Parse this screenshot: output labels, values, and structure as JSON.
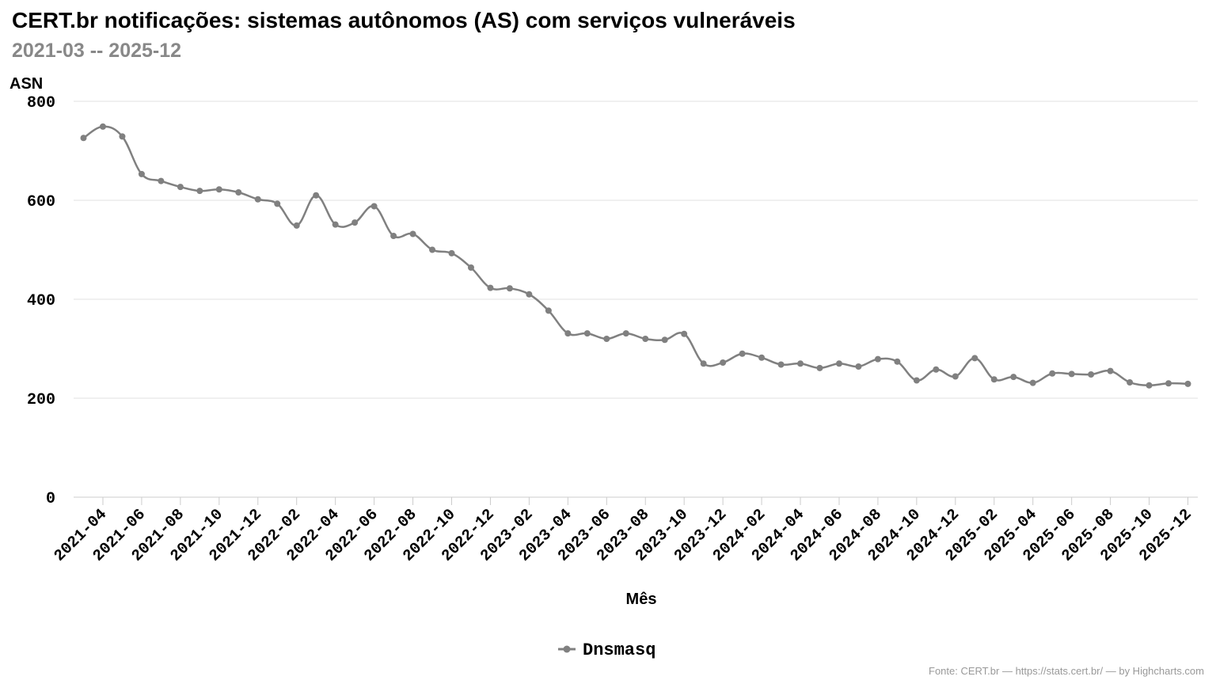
{
  "header": {
    "title": "CERT.br notificações: sistemas autônomos (AS) com serviços vulneráveis",
    "subtitle": "2021-03 -- 2025-12"
  },
  "credits": "Fonte: CERT.br — https://stats.cert.br/ — by Highcharts.com",
  "chart_data": {
    "type": "line",
    "title": "CERT.br notificações: sistemas autônomos (AS) com serviços vulneráveis",
    "subtitle": "2021-03 -- 2025-12",
    "xlabel": "Mês",
    "ylabel": "ASN",
    "ylim": [
      0,
      800
    ],
    "yticks": [
      0,
      200,
      400,
      600,
      800
    ],
    "grid": true,
    "legend_position": "bottom-center",
    "line_color": "#808080",
    "x_tick_labels": [
      "2021-04",
      "2021-06",
      "2021-08",
      "2021-10",
      "2021-12",
      "2022-02",
      "2022-04",
      "2022-06",
      "2022-08",
      "2022-10",
      "2022-12",
      "2023-02",
      "2023-04",
      "2023-06",
      "2023-08",
      "2023-10",
      "2023-12",
      "2024-02",
      "2024-04",
      "2024-06",
      "2024-08",
      "2024-10",
      "2024-12",
      "2025-02",
      "2025-04",
      "2025-06",
      "2025-08",
      "2025-10",
      "2025-12"
    ],
    "x": [
      "2021-03",
      "2021-04",
      "2021-05",
      "2021-06",
      "2021-07",
      "2021-08",
      "2021-09",
      "2021-10",
      "2021-11",
      "2021-12",
      "2022-01",
      "2022-02",
      "2022-03",
      "2022-04",
      "2022-05",
      "2022-06",
      "2022-07",
      "2022-08",
      "2022-09",
      "2022-10",
      "2022-11",
      "2022-12",
      "2023-01",
      "2023-02",
      "2023-03",
      "2023-04",
      "2023-05",
      "2023-06",
      "2023-07",
      "2023-08",
      "2023-09",
      "2023-10",
      "2023-11",
      "2023-12",
      "2024-01",
      "2024-02",
      "2024-03",
      "2024-04",
      "2024-05",
      "2024-06",
      "2024-07",
      "2024-08",
      "2024-09",
      "2024-10",
      "2024-11",
      "2024-12",
      "2025-01",
      "2025-02",
      "2025-03",
      "2025-04",
      "2025-05",
      "2025-06",
      "2025-07",
      "2025-08",
      "2025-09",
      "2025-10",
      "2025-11",
      "2025-12"
    ],
    "series": [
      {
        "name": "Dnsmasq",
        "values": [
          726,
          749,
          729,
          653,
          639,
          627,
          619,
          622,
          616,
          602,
          593,
          549,
          610,
          551,
          555,
          588,
          528,
          532,
          500,
          493,
          464,
          423,
          422,
          410,
          377,
          331,
          331,
          320,
          331,
          320,
          318,
          330,
          270,
          272,
          290,
          282,
          268,
          270,
          261,
          270,
          264,
          279,
          274,
          236,
          258,
          244,
          281,
          238,
          243,
          231,
          250,
          249,
          248,
          255,
          232,
          226,
          230,
          229
        ]
      }
    ]
  }
}
